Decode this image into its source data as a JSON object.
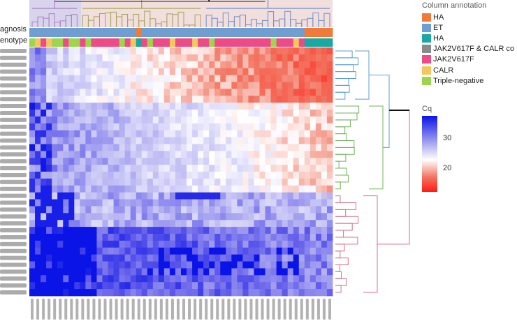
{
  "chart_data": {
    "type": "heatmap",
    "row_annotation_labels": [
      "agnosis",
      "enotype"
    ],
    "legend": {
      "title": "Column annotation",
      "items": [
        {
          "label": "HA",
          "color": "#f07a3a"
        },
        {
          "label": "ET",
          "color": "#6f9ed3"
        },
        {
          "label": "HA",
          "color": "#1ba7a3"
        },
        {
          "label": "JAK2V617F & CALR co",
          "color": "#8a8a8a"
        },
        {
          "label": "JAK2V617F",
          "color": "#ee4b86"
        },
        {
          "label": "CALR",
          "color": "#f7c55e"
        },
        {
          "label": "Triple-negative",
          "color": "#9fd44f"
        }
      ]
    },
    "color_scale": {
      "title": "Cq",
      "ticks": [
        "30",
        "20"
      ],
      "range": [
        15,
        38
      ]
    },
    "diagnosis_colors": {
      "HA": "#f07a3a",
      "ET": "#6f9ed3"
    },
    "genotype_colors": {
      "HA": "#1ba7a3",
      "JAK2V617F": "#ee4b86",
      "CALR": "#f7c55e",
      "Triple-negative": "#9fd44f",
      "JAK2V617F & CALR co": "#8a8a8a"
    },
    "n_rows": 36,
    "n_cols": 54,
    "row_blocks": [
      {
        "cluster": "blue",
        "rows": 8,
        "color": "#5f9dcf"
      },
      {
        "cluster": "green",
        "rows": 13,
        "color": "#72b35a"
      },
      {
        "cluster": "pink",
        "rows": 15,
        "color": "#d66f84"
      }
    ],
    "column_clusters": [
      {
        "cluster": "purple",
        "cols": 9,
        "color": "#a880bd"
      },
      {
        "cluster": "olive",
        "cols": 22,
        "color": "#9ea45a"
      },
      {
        "cluster": "blue",
        "cols": 23,
        "color": "#6f8fc4"
      }
    ],
    "col_diagnosis": [
      "ET",
      "ET",
      "ET",
      "ET",
      "ET",
      "ET",
      "ET",
      "ET",
      "ET",
      "ET",
      "ET",
      "ET",
      "ET",
      "ET",
      "ET",
      "ET",
      "ET",
      "ET",
      "ET",
      "HA",
      "ET",
      "ET",
      "ET",
      "ET",
      "ET",
      "ET",
      "ET",
      "ET",
      "ET",
      "ET",
      "ET",
      "ET",
      "ET",
      "ET",
      "ET",
      "ET",
      "ET",
      "ET",
      "ET",
      "ET",
      "ET",
      "ET",
      "ET",
      "ET",
      "ET",
      "ET",
      "ET",
      "ET",
      "ET",
      "HA",
      "HA",
      "HA",
      "HA",
      "HA"
    ],
    "col_genotype": [
      "Triple-negative",
      "CALR",
      "JAK2V617F",
      "CALR",
      "Triple-negative",
      "Triple-negative",
      "JAK2V617F",
      "Triple-negative",
      "Triple-negative",
      "JAK2V617F",
      "Triple-negative",
      "JAK2V617F",
      "JAK2V617F",
      "JAK2V617F",
      "JAK2V617F",
      "JAK2V617F",
      "Triple-negative",
      "JAK2V617F",
      "CALR",
      "HA",
      "JAK2V617F",
      "Triple-negative",
      "JAK2V617F",
      "JAK2V617F",
      "JAK2V617F",
      "CALR",
      "JAK2V617F",
      "JAK2V617F",
      "JAK2V617F",
      "CALR",
      "JAK2V617F",
      "JAK2V617F",
      "Triple-negative",
      "JAK2V617F",
      "JAK2V617F",
      "JAK2V617F",
      "JAK2V617F",
      "JAK2V617F",
      "JAK2V617F",
      "JAK2V617F",
      "JAK2V617F",
      "JAK2V617F",
      "JAK2V617F",
      "Triple-negative",
      "JAK2V617F",
      "JAK2V617F",
      "JAK2V617F",
      "CALR",
      "JAK2V617F",
      "HA",
      "HA",
      "HA",
      "HA",
      "HA"
    ]
  }
}
